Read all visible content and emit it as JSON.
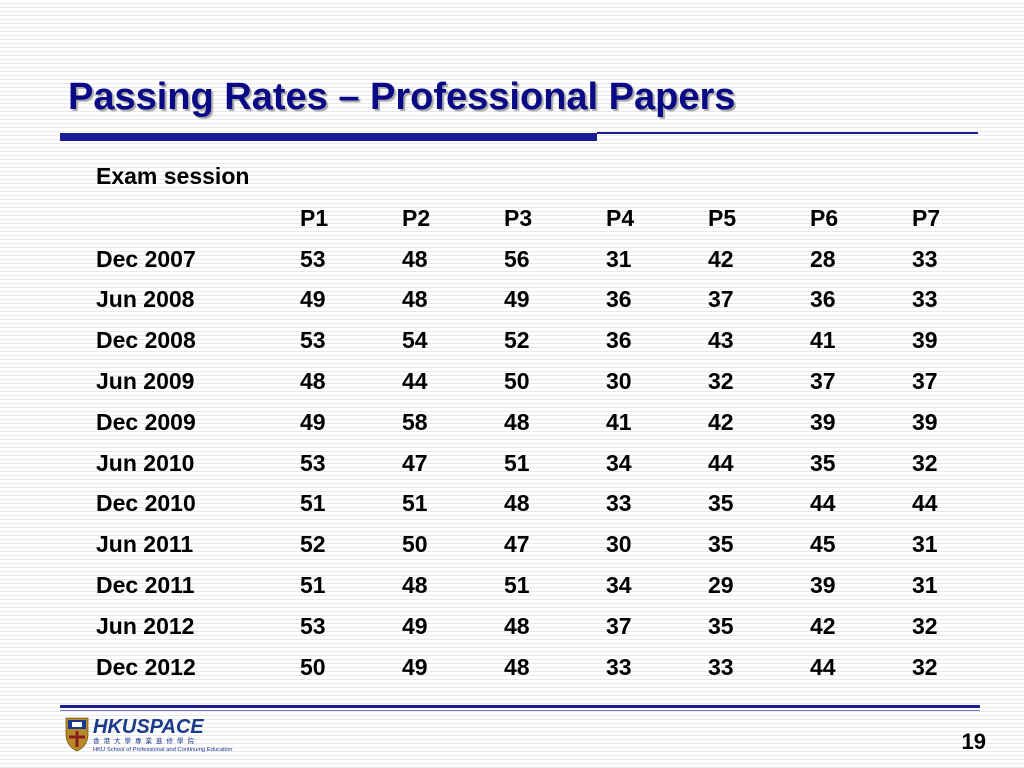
{
  "slide": {
    "title": "Passing Rates – Professional Papers",
    "page_number": "19"
  },
  "table": {
    "header_label": "Exam session",
    "columns": [
      "P1",
      "P2",
      "P3",
      "P4",
      "P5",
      "P6",
      "P7"
    ],
    "rows": [
      {
        "session": "Dec 2007",
        "values": [
          "53",
          "48",
          "56",
          "31",
          "42",
          "28",
          "33"
        ]
      },
      {
        "session": "Jun 2008",
        "values": [
          "49",
          "48",
          "49",
          "36",
          "37",
          "36",
          "33"
        ]
      },
      {
        "session": "Dec 2008",
        "values": [
          "53",
          "54",
          "52",
          "36",
          "43",
          "41",
          "39"
        ]
      },
      {
        "session": "Jun 2009",
        "values": [
          "48",
          "44",
          "50",
          "30",
          "32",
          "37",
          "37"
        ]
      },
      {
        "session": "Dec 2009",
        "values": [
          "49",
          "58",
          "48",
          "41",
          "42",
          "39",
          "39"
        ]
      },
      {
        "session": "Jun 2010",
        "values": [
          "53",
          "47",
          "51",
          "34",
          "44",
          "35",
          "32"
        ]
      },
      {
        "session": "Dec 2010",
        "values": [
          "51",
          "51",
          "48",
          "33",
          "35",
          "44",
          "44"
        ]
      },
      {
        "session": "Jun 2011",
        "values": [
          "52",
          "50",
          "47",
          "30",
          "35",
          "45",
          "31"
        ]
      },
      {
        "session": "Dec 2011",
        "values": [
          "51",
          "48",
          "51",
          "34",
          "29",
          "39",
          "31"
        ]
      },
      {
        "session": "Jun 2012",
        "values": [
          "53",
          "49",
          "48",
          "37",
          "35",
          "42",
          "32"
        ]
      },
      {
        "session": "Dec 2012",
        "values": [
          "50",
          "49",
          "48",
          "33",
          "33",
          "44",
          "32"
        ]
      }
    ]
  },
  "footer": {
    "logo": {
      "name_hku": "HKU",
      "name_space": "SPACE",
      "chinese_name": "香港大學專業進修學院",
      "english_name": "HKU School of Professional and Continuing Education",
      "crest_icon": "hku-crest-icon"
    }
  },
  "colors": {
    "title": "#0a0a86",
    "rule": "#1c1c94",
    "logo_blue": "#1a3a8c",
    "logo_gold": "#b68a2a"
  }
}
